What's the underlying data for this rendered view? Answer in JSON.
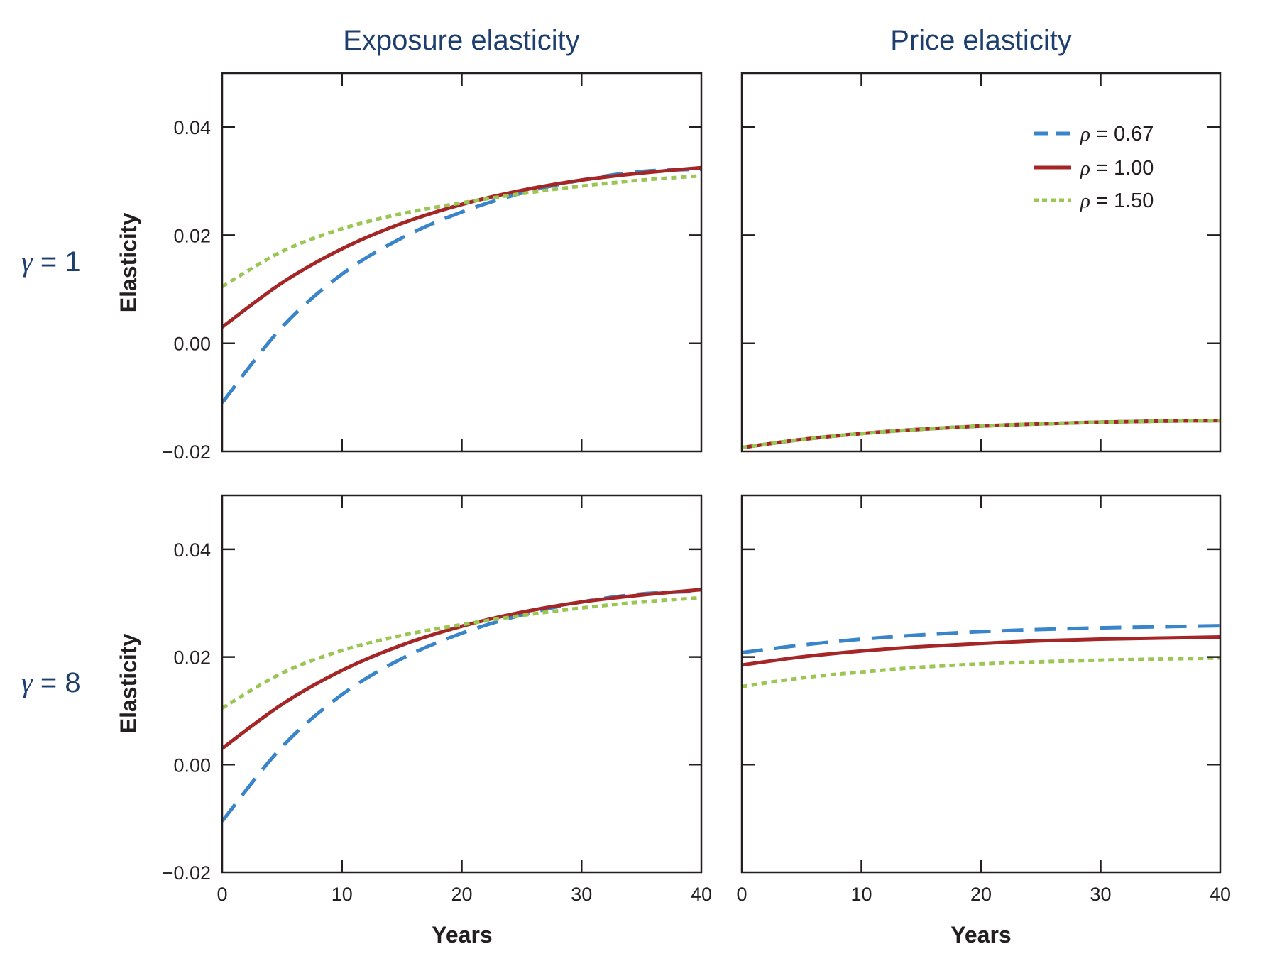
{
  "figure": {
    "column_titles": [
      "Exposure elasticity",
      "Price elasticity"
    ],
    "row_labels": [
      {
        "symbol": "γ",
        "text": " = 1"
      },
      {
        "symbol": "γ",
        "text": " = 8"
      }
    ],
    "ylabel": "Elasticity",
    "xlabel": "Years"
  },
  "legend": {
    "position": "top-right of top-right panel",
    "entries": [
      {
        "symbol": "ρ",
        "label": " = 0.67",
        "color": "#3a84c9",
        "style": "dashed"
      },
      {
        "symbol": "ρ",
        "label": " = 1.00",
        "color": "#a52626",
        "style": "solid"
      },
      {
        "symbol": "ρ",
        "label": " = 1.50",
        "color": "#9bc653",
        "style": "dotted"
      }
    ]
  },
  "chart_data": [
    {
      "type": "line",
      "panel": "gamma1-exposure",
      "title": "Exposure elasticity",
      "row": "γ = 1",
      "xlabel": "",
      "ylabel": "Elasticity",
      "xlim": [
        0,
        40
      ],
      "ylim": [
        -0.02,
        0.05
      ],
      "xticks": [
        0,
        10,
        20,
        30,
        40
      ],
      "yticks": [
        -0.02,
        0.0,
        0.02,
        0.04
      ],
      "ytick_labels": [
        "−0.02",
        "0.00",
        "0.02",
        "0.04"
      ],
      "xtick_labels": [],
      "grid": false,
      "x": [
        0,
        5,
        10,
        15,
        20,
        25,
        30,
        35,
        40
      ],
      "series": [
        {
          "name": "ρ = 0.67",
          "values": [
            -0.011,
            0.003,
            0.0128,
            0.0195,
            0.0243,
            0.0278,
            0.0302,
            0.0318,
            0.0322
          ]
        },
        {
          "name": "ρ = 1.00",
          "values": [
            0.003,
            0.0112,
            0.0175,
            0.0222,
            0.0257,
            0.0283,
            0.0302,
            0.0315,
            0.0325
          ]
        },
        {
          "name": "ρ = 1.50",
          "values": [
            0.0105,
            0.017,
            0.0212,
            0.024,
            0.026,
            0.0277,
            0.0291,
            0.0302,
            0.031
          ]
        }
      ]
    },
    {
      "type": "line",
      "panel": "gamma1-price",
      "title": "Price elasticity",
      "row": "γ = 1",
      "xlabel": "",
      "ylabel": "",
      "xlim": [
        0,
        40
      ],
      "ylim": [
        -0.02,
        0.05
      ],
      "xticks": [
        0,
        10,
        20,
        30,
        40
      ],
      "yticks": [
        -0.02,
        0.0,
        0.02,
        0.04
      ],
      "ytick_labels": [],
      "xtick_labels": [],
      "grid": false,
      "x": [
        0,
        5,
        10,
        15,
        20,
        25,
        30,
        35,
        40
      ],
      "series": [
        {
          "name": "ρ = 0.67",
          "values": [
            -0.0193,
            -0.0178,
            -0.0167,
            -0.0159,
            -0.0153,
            -0.0149,
            -0.0146,
            -0.0144,
            -0.0143
          ]
        },
        {
          "name": "ρ = 1.00",
          "values": [
            -0.0193,
            -0.0178,
            -0.0167,
            -0.0159,
            -0.0153,
            -0.0149,
            -0.0146,
            -0.0144,
            -0.0143
          ]
        },
        {
          "name": "ρ = 1.50",
          "values": [
            -0.0193,
            -0.0178,
            -0.0167,
            -0.0159,
            -0.0153,
            -0.0149,
            -0.0146,
            -0.0144,
            -0.0143
          ]
        }
      ]
    },
    {
      "type": "line",
      "panel": "gamma8-exposure",
      "title": "",
      "row": "γ = 8",
      "xlabel": "Years",
      "ylabel": "Elasticity",
      "xlim": [
        0,
        40
      ],
      "ylim": [
        -0.02,
        0.05
      ],
      "xticks": [
        0,
        10,
        20,
        30,
        40
      ],
      "yticks": [
        -0.02,
        0.0,
        0.02,
        0.04
      ],
      "ytick_labels": [
        "−0.02",
        "0.00",
        "0.02",
        "0.04"
      ],
      "xtick_labels": [
        "0",
        "10",
        "20",
        "30",
        "40"
      ],
      "grid": false,
      "x": [
        0,
        5,
        10,
        15,
        20,
        25,
        30,
        35,
        40
      ],
      "series": [
        {
          "name": "ρ = 0.67",
          "values": [
            -0.0105,
            0.0033,
            0.013,
            0.0197,
            0.0244,
            0.0278,
            0.0302,
            0.0317,
            0.0322
          ]
        },
        {
          "name": "ρ = 1.00",
          "values": [
            0.003,
            0.0112,
            0.0175,
            0.0222,
            0.0257,
            0.0283,
            0.0302,
            0.0315,
            0.0325
          ]
        },
        {
          "name": "ρ = 1.50",
          "values": [
            0.0105,
            0.017,
            0.0212,
            0.024,
            0.026,
            0.0277,
            0.0291,
            0.0302,
            0.031
          ]
        }
      ]
    },
    {
      "type": "line",
      "panel": "gamma8-price",
      "title": "",
      "row": "γ = 8",
      "xlabel": "Years",
      "ylabel": "",
      "xlim": [
        0,
        40
      ],
      "ylim": [
        -0.02,
        0.05
      ],
      "xticks": [
        0,
        10,
        20,
        30,
        40
      ],
      "yticks": [
        -0.02,
        0.0,
        0.02,
        0.04
      ],
      "ytick_labels": [],
      "xtick_labels": [
        "0",
        "10",
        "20",
        "30",
        "40"
      ],
      "grid": false,
      "x": [
        0,
        5,
        10,
        15,
        20,
        25,
        30,
        35,
        40
      ],
      "series": [
        {
          "name": "ρ = 0.67",
          "values": [
            0.0208,
            0.0222,
            0.0233,
            0.0241,
            0.0247,
            0.0251,
            0.0254,
            0.0256,
            0.0258
          ]
        },
        {
          "name": "ρ = 1.00",
          "values": [
            0.0185,
            0.02,
            0.0211,
            0.0219,
            0.0225,
            0.023,
            0.0233,
            0.0235,
            0.0237
          ]
        },
        {
          "name": "ρ = 1.50",
          "values": [
            0.0145,
            0.0161,
            0.0172,
            0.0181,
            0.0187,
            0.0191,
            0.0194,
            0.0196,
            0.0198
          ]
        }
      ]
    }
  ]
}
